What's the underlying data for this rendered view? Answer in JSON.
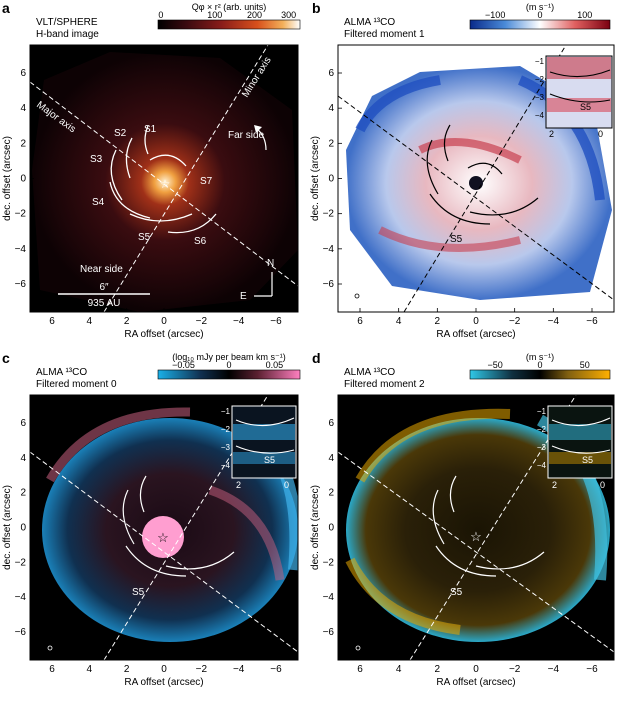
{
  "figure": {
    "panels": [
      {
        "letter": "a",
        "title_line1": "VLT/SPHERE",
        "title_line2": "H-band image",
        "colorbar_label": "Qφ × r² (arb. units)",
        "colorbar_ticks": [
          "0",
          "100",
          "200",
          "300"
        ],
        "labels": {
          "major_axis": "Major axis",
          "minor_axis": "Minor axis",
          "far_side": "Far side",
          "near_side": "Near side",
          "spirals": [
            "S1",
            "S2",
            "S3",
            "S4",
            "S5",
            "S6",
            "S7"
          ],
          "compass_n": "N",
          "compass_e": "E",
          "scalebar_top": "6″",
          "scalebar_bottom": "935 AU"
        },
        "xlabel": "RA offset (arcsec)",
        "ylabel": "dec. offset (arcsec)",
        "xticks": [
          "6",
          "4",
          "2",
          "0",
          "−2",
          "−4",
          "−6"
        ],
        "yticks": [
          "6",
          "4",
          "2",
          "0",
          "−2",
          "−4",
          "−6"
        ]
      },
      {
        "letter": "b",
        "title_line1": "ALMA ¹³CO",
        "title_line2": "Filtered moment 1",
        "colorbar_label": "(m s⁻¹)",
        "colorbar_ticks": [
          "−100",
          "0",
          "100"
        ],
        "labels": {
          "spiral": "S5"
        },
        "inset_xticks": [
          "2",
          "0"
        ],
        "inset_yticks": [
          "−1",
          "−2",
          "−3",
          "−4"
        ],
        "xlabel": "RA offset (arcsec)",
        "ylabel": "dec. offset (arcsec)",
        "xticks": [
          "6",
          "4",
          "2",
          "0",
          "−2",
          "−4",
          "−6"
        ],
        "yticks": [
          "6",
          "4",
          "2",
          "0",
          "−2",
          "−4",
          "−6"
        ]
      },
      {
        "letter": "c",
        "title_line1": "ALMA ¹³CO",
        "title_line2": "Filtered moment 0",
        "colorbar_label": "(log₁₀ mJy per beam km s⁻¹)",
        "colorbar_ticks": [
          "−0.05",
          "0",
          "0.05"
        ],
        "labels": {
          "spiral": "S5"
        },
        "inset_xticks": [
          "2",
          "0"
        ],
        "inset_yticks": [
          "−1",
          "−2",
          "−3",
          "−4"
        ],
        "xlabel": "RA offset (arcsec)",
        "ylabel": "dec. offset (arcsec)",
        "xticks": [
          "6",
          "4",
          "2",
          "0",
          "−2",
          "−4",
          "−6"
        ],
        "yticks": [
          "6",
          "4",
          "2",
          "0",
          "−2",
          "−4",
          "−6"
        ]
      },
      {
        "letter": "d",
        "title_line1": "ALMA ¹³CO",
        "title_line2": "Filtered moment 2",
        "colorbar_label": "(m s⁻¹)",
        "colorbar_ticks": [
          "−50",
          "0",
          "50"
        ],
        "labels": {
          "spiral": "S5"
        },
        "inset_xticks": [
          "2",
          "0"
        ],
        "inset_yticks": [
          "−1",
          "−2",
          "−3",
          "−4"
        ],
        "xlabel": "RA offset (arcsec)",
        "ylabel": "dec. offset (arcsec)",
        "xticks": [
          "6",
          "4",
          "2",
          "0",
          "−2",
          "−4",
          "−6"
        ],
        "yticks": [
          "6",
          "4",
          "2",
          "0",
          "−2",
          "−4",
          "−6"
        ]
      }
    ],
    "colors": {
      "panel_a_map": [
        "#000000",
        "#3a0a10",
        "#8a1d1a",
        "#d8501c",
        "#f3b05a",
        "#ffffff"
      ],
      "panel_b_map": [
        "#0a2a8a",
        "#4a8ad8",
        "#ffffff",
        "#e06060",
        "#7a0010"
      ],
      "panel_c_map": [
        "#1ab0e8",
        "#103050",
        "#000000",
        "#5a2030",
        "#ff80c0"
      ],
      "panel_d_map": [
        "#30c8e8",
        "#103040",
        "#000000",
        "#806010",
        "#ffb000"
      ]
    }
  }
}
